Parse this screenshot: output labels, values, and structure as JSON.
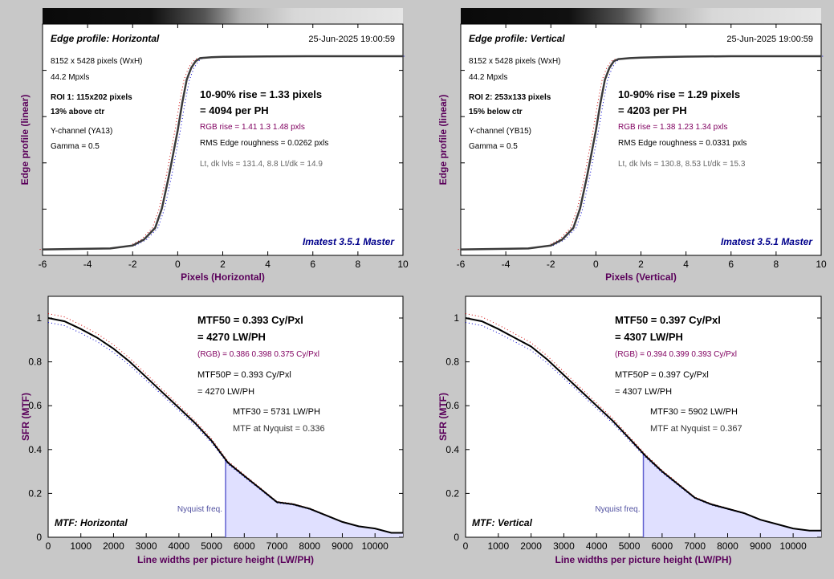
{
  "chart_data": [
    {
      "type": "line",
      "panel": "edge",
      "title": "Edge profile: Horizontal",
      "timestamp": "25-Jun-2025 19:00:59",
      "ylabel": "Edge profile (linear)",
      "xlabel": "Pixels (Horizontal)",
      "xlim": [
        -6,
        10
      ],
      "xticks": [
        "-6",
        "-4",
        "-2",
        "0",
        "2",
        "4",
        "6",
        "8",
        "10"
      ],
      "info_lines": [
        "8152 x 5428 pixels (WxH)",
        "44.2 Mpxls"
      ],
      "roi_lines": [
        "ROI 1:  115x202 pixels",
        "13% above ctr"
      ],
      "channel_lines": [
        "Y-channel  (YA13)",
        "Gamma = 0.5"
      ],
      "rise": "10-90% rise = 1.33 pixels",
      "per_ph": "= 4094 per PH",
      "rgb_rise": "RGB rise = 1.41  1.3  1.48 pxls",
      "rms": "RMS Edge roughness = 0.0262 pxls",
      "levels": "Lt, dk lvls = 131.4, 8.8   Lt/dk = 14.9",
      "brand": "Imatest 3.5.1 Master",
      "series": [
        {
          "x": [
            -6,
            -3,
            -2,
            -1.5,
            -1,
            -0.7,
            -0.4,
            -0.2,
            0,
            0.2,
            0.4,
            0.6,
            0.8,
            1,
            1.5,
            2,
            3,
            4,
            6,
            8,
            10
          ],
          "y": [
            0.01,
            0.015,
            0.03,
            0.06,
            0.12,
            0.22,
            0.38,
            0.5,
            0.62,
            0.76,
            0.88,
            0.94,
            0.975,
            0.99,
            0.995,
            0.997,
            0.998,
            0.999,
            1.0,
            1.0,
            1.0
          ]
        }
      ],
      "color": "#3a3a3a"
    },
    {
      "type": "line",
      "panel": "edge",
      "title": "Edge profile: Vertical",
      "timestamp": "25-Jun-2025 19:00:59",
      "ylabel": "Edge profile (linear)",
      "xlabel": "Pixels (Vertical)",
      "xlim": [
        -6,
        10
      ],
      "xticks": [
        "-6",
        "-4",
        "-2",
        "0",
        "2",
        "4",
        "6",
        "8",
        "10"
      ],
      "info_lines": [
        "8152 x 5428 pixels (WxH)",
        "44.2 Mpxls"
      ],
      "roi_lines": [
        "ROI 2:  253x133 pixels",
        "15% below ctr"
      ],
      "channel_lines": [
        "Y-channel  (YB15)",
        "Gamma = 0.5"
      ],
      "rise": "10-90% rise = 1.29 pixels",
      "per_ph": "= 4203 per PH",
      "rgb_rise": "RGB rise = 1.38  1.23  1.34 pxls",
      "rms": "RMS Edge roughness = 0.0331 pxls",
      "levels": "Lt, dk lvls = 130.8, 8.53   Lt/dk = 15.3",
      "brand": "Imatest 3.5.1 Master",
      "series": [
        {
          "x": [
            -6,
            -3,
            -2,
            -1.5,
            -1,
            -0.7,
            -0.4,
            -0.2,
            0,
            0.2,
            0.4,
            0.6,
            0.8,
            1,
            1.5,
            2,
            3,
            4,
            6,
            8,
            10
          ],
          "y": [
            0.01,
            0.015,
            0.03,
            0.06,
            0.12,
            0.22,
            0.38,
            0.5,
            0.62,
            0.76,
            0.88,
            0.94,
            0.975,
            0.985,
            0.99,
            0.993,
            0.996,
            0.998,
            1.0,
            1.0,
            1.0
          ]
        }
      ],
      "color": "#3a3a3a"
    },
    {
      "type": "line",
      "panel": "mtf",
      "title": "MTF: Horizontal",
      "ylabel": "SFR (MTF)",
      "xlabel": "Line widths per picture height (LW/PH)",
      "xlim": [
        0,
        10855
      ],
      "ylim": [
        0,
        1.0
      ],
      "xticks": [
        "0",
        "1000",
        "2000",
        "3000",
        "4000",
        "5000",
        "6000",
        "7000",
        "8000",
        "9000",
        "10000"
      ],
      "yticks": [
        "0",
        "0.2",
        "0.4",
        "0.6",
        "0.8",
        "1"
      ],
      "nyquist": 5428,
      "nyquist_label": "Nyquist freq.",
      "mtf50": "MTF50 = 0.393 Cy/Pxl",
      "mtf50_lwph": "= 4270 LW/PH",
      "rgb": "(RGB) = 0.386  0.398  0.375 Cy/Pxl",
      "mtf50p": "MTF50P = 0.393 Cy/Pxl",
      "mtf50p_lwph": "= 4270 LW/PH",
      "mtf30": "MTF30 = 5731 LW/PH",
      "nyq_val": "MTF at Nyquist = 0.336",
      "series": [
        {
          "x": [
            0,
            500,
            1000,
            1500,
            2000,
            2500,
            3000,
            3500,
            4000,
            4500,
            5000,
            5500,
            6000,
            6500,
            7000,
            7500,
            8000,
            8500,
            9000,
            9500,
            10000,
            10500,
            10855
          ],
          "y": [
            1.0,
            0.985,
            0.95,
            0.91,
            0.86,
            0.8,
            0.73,
            0.66,
            0.59,
            0.52,
            0.44,
            0.34,
            0.28,
            0.22,
            0.16,
            0.15,
            0.13,
            0.1,
            0.07,
            0.05,
            0.04,
            0.02,
            0.02
          ]
        }
      ]
    },
    {
      "type": "line",
      "panel": "mtf",
      "title": "MTF: Vertical",
      "ylabel": "SFR (MTF)",
      "xlabel": "Line widths per picture height (LW/PH)",
      "xlim": [
        0,
        10855
      ],
      "ylim": [
        0,
        1.0
      ],
      "xticks": [
        "0",
        "1000",
        "2000",
        "3000",
        "4000",
        "5000",
        "6000",
        "7000",
        "8000",
        "9000",
        "10000"
      ],
      "yticks": [
        "0",
        "0.2",
        "0.4",
        "0.6",
        "0.8",
        "1"
      ],
      "nyquist": 5428,
      "nyquist_label": "Nyquist freq.",
      "mtf50": "MTF50 = 0.397 Cy/Pxl",
      "mtf50_lwph": "= 4307 LW/PH",
      "rgb": "(RGB) = 0.394  0.399  0.393 Cy/Pxl",
      "mtf50p": "MTF50P = 0.397 Cy/Pxl",
      "mtf50p_lwph": "= 4307 LW/PH",
      "mtf30": "MTF30 = 5902 LW/PH",
      "nyq_val": "MTF at Nyquist = 0.367",
      "series": [
        {
          "x": [
            0,
            500,
            1000,
            1500,
            2000,
            2500,
            3000,
            3500,
            4000,
            4500,
            5000,
            5500,
            6000,
            6500,
            7000,
            7500,
            8000,
            8500,
            9000,
            9500,
            10000,
            10500,
            10855
          ],
          "y": [
            1.0,
            0.985,
            0.95,
            0.91,
            0.87,
            0.81,
            0.74,
            0.67,
            0.6,
            0.53,
            0.45,
            0.37,
            0.3,
            0.24,
            0.18,
            0.15,
            0.13,
            0.11,
            0.08,
            0.06,
            0.04,
            0.03,
            0.03
          ]
        }
      ]
    }
  ]
}
